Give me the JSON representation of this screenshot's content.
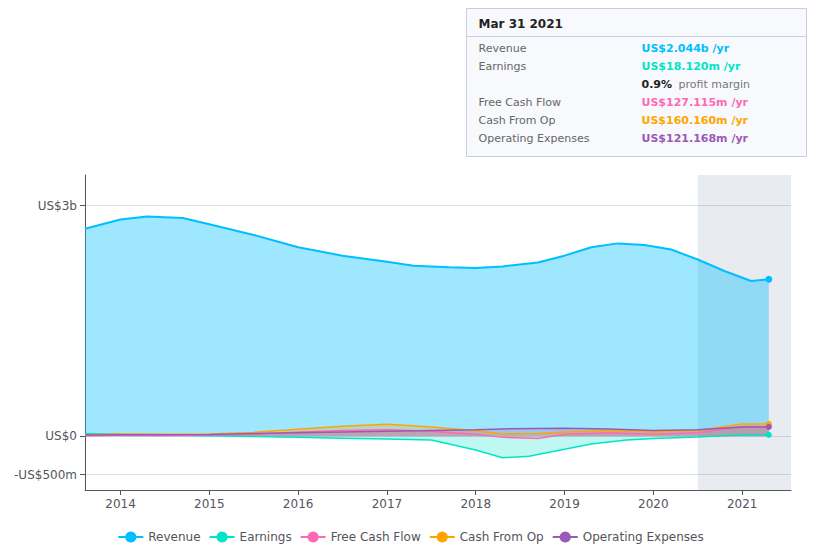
{
  "chart_data": {
    "type": "area",
    "xlim": [
      2013.6,
      2021.55
    ],
    "xticks": [
      2014,
      2015,
      2016,
      2017,
      2018,
      2019,
      2020,
      2021
    ],
    "ylim": [
      -700,
      3400
    ],
    "yticks": [
      {
        "value": -500,
        "label": "-US$500m"
      },
      {
        "value": 0,
        "label": "US$0"
      },
      {
        "value": 3000,
        "label": "US$3b"
      }
    ],
    "grid": true,
    "legend": "bottom",
    "shade_start": 2020.5,
    "series": [
      {
        "name": "Revenue",
        "color": "#00bfff",
        "x": [
          2013.6,
          2014.0,
          2014.3,
          2014.7,
          2015.0,
          2015.5,
          2016.0,
          2016.5,
          2017.0,
          2017.3,
          2017.7,
          2018.0,
          2018.3,
          2018.7,
          2019.0,
          2019.3,
          2019.6,
          2019.9,
          2020.2,
          2020.5,
          2020.8,
          2021.1,
          2021.3
        ],
        "values": [
          2700,
          2820,
          2860,
          2840,
          2760,
          2620,
          2460,
          2350,
          2270,
          2220,
          2200,
          2190,
          2210,
          2260,
          2350,
          2460,
          2510,
          2490,
          2430,
          2300,
          2150,
          2020,
          2044
        ]
      },
      {
        "name": "Earnings",
        "color": "#00e5c8",
        "x": [
          2013.6,
          2014.0,
          2014.5,
          2015.0,
          2015.5,
          2016.0,
          2016.5,
          2017.0,
          2017.5,
          2018.0,
          2018.3,
          2018.6,
          2019.0,
          2019.3,
          2019.7,
          2020.0,
          2020.5,
          2021.0,
          2021.3
        ],
        "values": [
          35,
          25,
          15,
          5,
          -5,
          -15,
          -25,
          -35,
          -50,
          -180,
          -280,
          -260,
          -170,
          -100,
          -50,
          -30,
          -10,
          18,
          18
        ]
      },
      {
        "name": "Free Cash Flow",
        "color": "#ff69b4",
        "x": [
          2013.6,
          2014.0,
          2014.5,
          2015.0,
          2015.5,
          2016.0,
          2016.5,
          2017.0,
          2017.5,
          2018.0,
          2018.3,
          2018.7,
          2019.0,
          2019.5,
          2020.0,
          2020.5,
          2021.0,
          2021.3
        ],
        "values": [
          5,
          15,
          10,
          15,
          25,
          55,
          75,
          85,
          65,
          25,
          -15,
          -30,
          25,
          45,
          25,
          45,
          127,
          127
        ]
      },
      {
        "name": "Cash From Op",
        "color": "#ffa500",
        "x": [
          2013.6,
          2014.0,
          2014.5,
          2015.0,
          2015.5,
          2016.0,
          2016.5,
          2017.0,
          2017.5,
          2018.0,
          2018.3,
          2018.7,
          2019.0,
          2019.5,
          2020.0,
          2020.5,
          2021.0,
          2021.3
        ],
        "values": [
          20,
          30,
          25,
          30,
          50,
          90,
          130,
          155,
          120,
          70,
          30,
          35,
          55,
          75,
          55,
          75,
          160,
          160
        ]
      },
      {
        "name": "Operating Expenses",
        "color": "#9b59b6",
        "x": [
          2013.6,
          2014.0,
          2014.5,
          2015.0,
          2015.5,
          2016.0,
          2016.5,
          2017.0,
          2017.5,
          2018.0,
          2018.3,
          2018.7,
          2019.0,
          2019.5,
          2020.0,
          2020.5,
          2021.0,
          2021.3
        ],
        "values": [
          15,
          20,
          18,
          22,
          35,
          45,
          55,
          65,
          75,
          85,
          95,
          100,
          105,
          95,
          75,
          85,
          121,
          121
        ]
      }
    ],
    "annotations": {
      "title": "Mar 31 2021",
      "rows": [
        {
          "label": "Revenue",
          "value": "US$2.044b /yr"
        },
        {
          "label": "Earnings",
          "value": "US$18.120m /yr"
        },
        {
          "value": "0.9%",
          "note": "profit margin"
        },
        {
          "label": "Free Cash Flow",
          "value": "US$127.115m /yr"
        },
        {
          "label": "Cash From Op",
          "value": "US$160.160m /yr"
        },
        {
          "label": "Operating Expenses",
          "value": "US$121.168m /yr"
        }
      ]
    }
  }
}
